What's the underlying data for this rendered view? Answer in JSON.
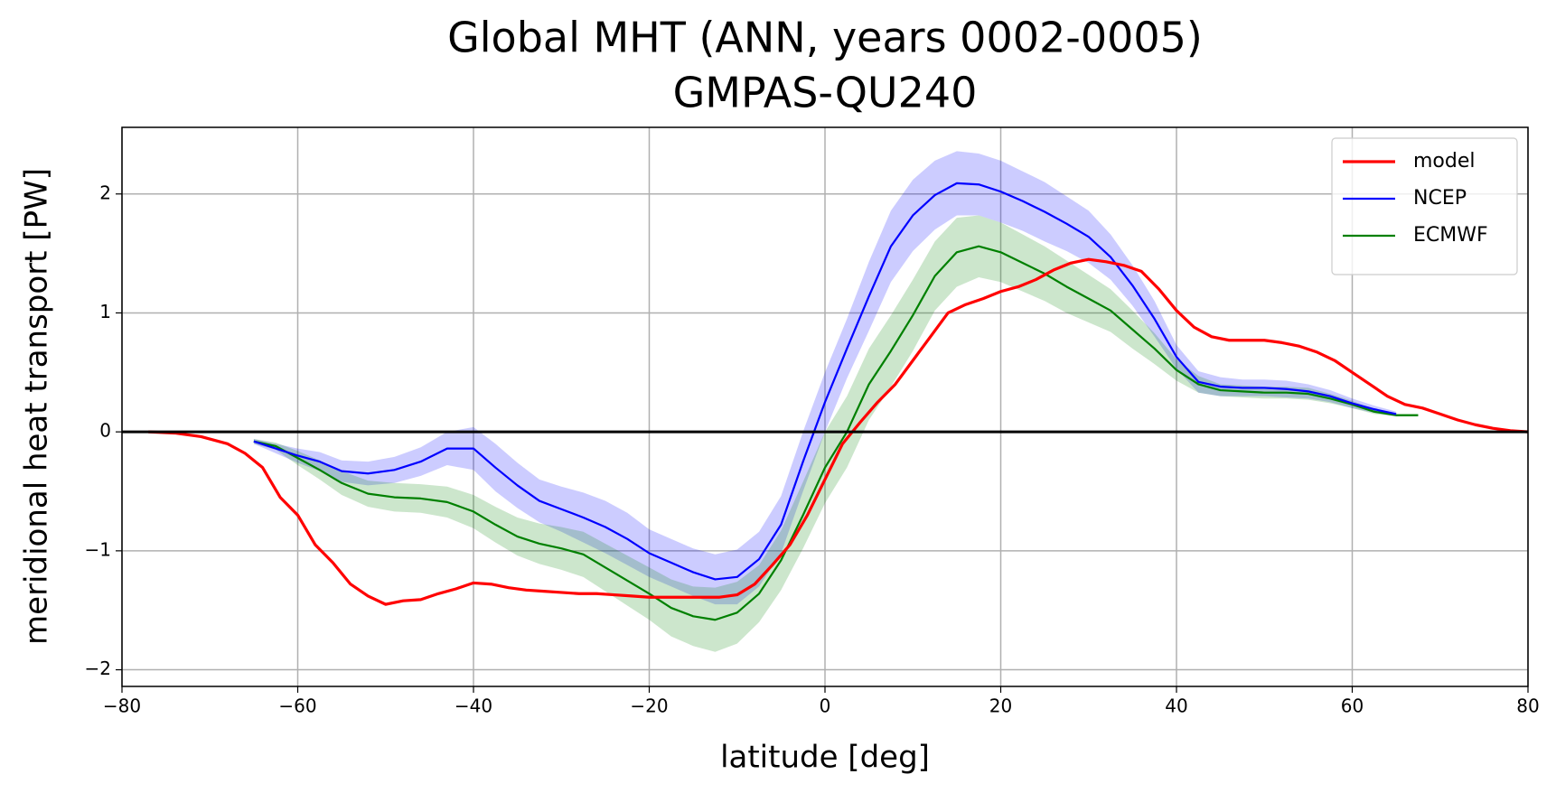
{
  "chart_data": {
    "type": "line",
    "title": "Global MHT (ANN, years 0002-0005)",
    "subtitle": "GMPAS-QU240",
    "x_label": "latitude [deg]",
    "y_label": "meridional heat transport [PW]",
    "xlim": [
      -80,
      80
    ],
    "ylim": [
      -2.14,
      2.56
    ],
    "xticks": [
      {
        "value": -80,
        "label": "−80"
      },
      {
        "value": -60,
        "label": "−60"
      },
      {
        "value": -40,
        "label": "−40"
      },
      {
        "value": -20,
        "label": "−20"
      },
      0,
      20,
      40,
      60,
      80
    ],
    "yticks": [
      {
        "value": -2,
        "label": "−2"
      },
      {
        "value": -1,
        "label": "−1"
      },
      0,
      1,
      2
    ],
    "grid": true,
    "reference_line": 0,
    "legend": "upper right",
    "series": [
      {
        "name": "model",
        "color": "#ff0000",
        "x": [
          -77,
          -74,
          -71,
          -68,
          -66,
          -64,
          -62,
          -60,
          -58,
          -56,
          -54,
          -52,
          -50,
          -48,
          -46,
          -44,
          -42,
          -40,
          -38,
          -36,
          -34,
          -32,
          -30,
          -28,
          -26,
          -24,
          -22,
          -20,
          -18,
          -16,
          -14,
          -12,
          -10,
          -8,
          -6,
          -4,
          -2,
          0,
          2,
          4,
          6,
          8,
          10,
          12,
          14,
          16,
          18,
          20,
          22,
          24,
          26,
          28,
          30,
          32,
          34,
          36,
          38,
          40,
          42,
          44,
          46,
          48,
          50,
          52,
          54,
          56,
          58,
          60,
          62,
          64,
          66,
          68,
          70,
          72,
          74,
          76,
          78,
          80
        ],
        "values": [
          0,
          -0.01,
          -0.04,
          -0.1,
          -0.18,
          -0.3,
          -0.55,
          -0.7,
          -0.95,
          -1.1,
          -1.28,
          -1.38,
          -1.45,
          -1.42,
          -1.41,
          -1.36,
          -1.32,
          -1.27,
          -1.28,
          -1.31,
          -1.33,
          -1.34,
          -1.35,
          -1.36,
          -1.36,
          -1.37,
          -1.38,
          -1.39,
          -1.39,
          -1.39,
          -1.39,
          -1.39,
          -1.37,
          -1.28,
          -1.12,
          -0.95,
          -0.7,
          -0.4,
          -0.1,
          0.08,
          0.25,
          0.4,
          0.6,
          0.8,
          1.0,
          1.07,
          1.12,
          1.18,
          1.22,
          1.28,
          1.36,
          1.42,
          1.45,
          1.43,
          1.4,
          1.35,
          1.2,
          1.02,
          0.88,
          0.8,
          0.77,
          0.77,
          0.77,
          0.75,
          0.72,
          0.67,
          0.6,
          0.5,
          0.4,
          0.3,
          0.23,
          0.2,
          0.15,
          0.1,
          0.06,
          0.03,
          0.01,
          0
        ]
      },
      {
        "name": "NCEP",
        "color": "#0000ff",
        "x": [
          -65,
          -62.5,
          -60,
          -57.5,
          -55,
          -52,
          -49,
          -46,
          -43,
          -40,
          -37.5,
          -35,
          -32.5,
          -30,
          -27.5,
          -25,
          -22.5,
          -20,
          -17.5,
          -15,
          -12.5,
          -10,
          -7.5,
          -5,
          -2.5,
          0,
          2.5,
          5,
          7.5,
          10,
          12.5,
          15,
          17.5,
          20,
          22.5,
          25,
          27.5,
          30,
          32.5,
          35,
          37.5,
          40,
          42.5,
          45,
          47.5,
          50,
          52.5,
          55,
          57.5,
          60,
          62.5,
          65
        ],
        "values": [
          -0.08,
          -0.14,
          -0.2,
          -0.25,
          -0.33,
          -0.35,
          -0.32,
          -0.25,
          -0.14,
          -0.14,
          -0.3,
          -0.45,
          -0.58,
          -0.65,
          -0.72,
          -0.8,
          -0.9,
          -1.02,
          -1.1,
          -1.18,
          -1.24,
          -1.22,
          -1.07,
          -0.78,
          -0.25,
          0.25,
          0.7,
          1.14,
          1.56,
          1.82,
          1.99,
          2.09,
          2.08,
          2.02,
          1.94,
          1.85,
          1.75,
          1.64,
          1.47,
          1.23,
          0.95,
          0.63,
          0.42,
          0.38,
          0.37,
          0.37,
          0.36,
          0.34,
          0.3,
          0.24,
          0.19,
          0.15
        ],
        "lower": [
          -0.1,
          -0.18,
          -0.26,
          -0.33,
          -0.42,
          -0.45,
          -0.43,
          -0.37,
          -0.28,
          -0.32,
          -0.5,
          -0.64,
          -0.76,
          -0.84,
          -0.93,
          -1.02,
          -1.12,
          -1.22,
          -1.3,
          -1.38,
          -1.45,
          -1.45,
          -1.3,
          -1.02,
          -0.5,
          0,
          0.45,
          0.85,
          1.26,
          1.52,
          1.7,
          1.82,
          1.82,
          1.76,
          1.69,
          1.6,
          1.52,
          1.42,
          1.28,
          1.06,
          0.8,
          0.53,
          0.33,
          0.3,
          0.3,
          0.3,
          0.29,
          0.28,
          0.25,
          0.2,
          0.16,
          0.13
        ],
        "upper": [
          -0.06,
          -0.1,
          -0.14,
          -0.17,
          -0.24,
          -0.25,
          -0.21,
          -0.13,
          0,
          0.04,
          -0.1,
          -0.26,
          -0.4,
          -0.46,
          -0.51,
          -0.58,
          -0.68,
          -0.82,
          -0.9,
          -0.98,
          -1.03,
          -0.99,
          -0.84,
          -0.54,
          0,
          0.5,
          0.95,
          1.43,
          1.86,
          2.12,
          2.28,
          2.36,
          2.34,
          2.28,
          2.19,
          2.1,
          1.98,
          1.86,
          1.66,
          1.4,
          1.1,
          0.73,
          0.51,
          0.46,
          0.44,
          0.44,
          0.43,
          0.4,
          0.35,
          0.28,
          0.22,
          0.17
        ]
      },
      {
        "name": "ECMWF",
        "color": "#008000",
        "x": [
          -65,
          -62.5,
          -60,
          -57.5,
          -55,
          -52,
          -49,
          -46,
          -43,
          -40,
          -37.5,
          -35,
          -32.5,
          -30,
          -27.5,
          -25,
          -22.5,
          -20,
          -17.5,
          -15,
          -12.5,
          -10,
          -7.5,
          -5,
          -2.5,
          0,
          2.5,
          5,
          7.5,
          10,
          12.5,
          15,
          17.5,
          20,
          22.5,
          25,
          27.5,
          30,
          32.5,
          35,
          37.5,
          40,
          42.5,
          45,
          47.5,
          50,
          52.5,
          55,
          57.5,
          60,
          62.5,
          65,
          67.5
        ],
        "values": [
          -0.08,
          -0.12,
          -0.22,
          -0.32,
          -0.43,
          -0.52,
          -0.55,
          -0.56,
          -0.59,
          -0.67,
          -0.78,
          -0.88,
          -0.94,
          -0.98,
          -1.03,
          -1.14,
          -1.25,
          -1.36,
          -1.48,
          -1.55,
          -1.58,
          -1.52,
          -1.36,
          -1.08,
          -0.7,
          -0.3,
          0,
          0.4,
          0.68,
          0.98,
          1.31,
          1.51,
          1.56,
          1.51,
          1.42,
          1.33,
          1.22,
          1.12,
          1.02,
          0.86,
          0.7,
          0.52,
          0.4,
          0.35,
          0.34,
          0.33,
          0.33,
          0.32,
          0.28,
          0.23,
          0.17,
          0.14,
          0.14
        ],
        "lower": [
          -0.1,
          -0.15,
          -0.28,
          -0.4,
          -0.53,
          -0.63,
          -0.67,
          -0.68,
          -0.72,
          -0.81,
          -0.93,
          -1.04,
          -1.11,
          -1.16,
          -1.22,
          -1.34,
          -1.46,
          -1.58,
          -1.72,
          -1.8,
          -1.85,
          -1.78,
          -1.6,
          -1.33,
          -0.98,
          -0.6,
          -0.3,
          0.1,
          0.38,
          0.68,
          1.02,
          1.22,
          1.3,
          1.26,
          1.18,
          1.1,
          1,
          0.92,
          0.84,
          0.7,
          0.57,
          0.43,
          0.33,
          0.3,
          0.29,
          0.28,
          0.28,
          0.27,
          0.24,
          0.2,
          0.15,
          0.13,
          0.13
        ],
        "upper": [
          -0.06,
          -0.09,
          -0.16,
          -0.24,
          -0.33,
          -0.41,
          -0.43,
          -0.44,
          -0.46,
          -0.53,
          -0.63,
          -0.72,
          -0.77,
          -0.8,
          -0.84,
          -0.94,
          -1.04,
          -1.14,
          -1.24,
          -1.3,
          -1.31,
          -1.26,
          -1.12,
          -0.83,
          -0.42,
          0,
          0.3,
          0.7,
          0.98,
          1.28,
          1.6,
          1.8,
          1.82,
          1.76,
          1.66,
          1.56,
          1.44,
          1.32,
          1.2,
          1.02,
          0.83,
          0.61,
          0.47,
          0.4,
          0.39,
          0.38,
          0.38,
          0.37,
          0.32,
          0.26,
          0.19,
          0.15,
          0.15
        ]
      }
    ]
  }
}
